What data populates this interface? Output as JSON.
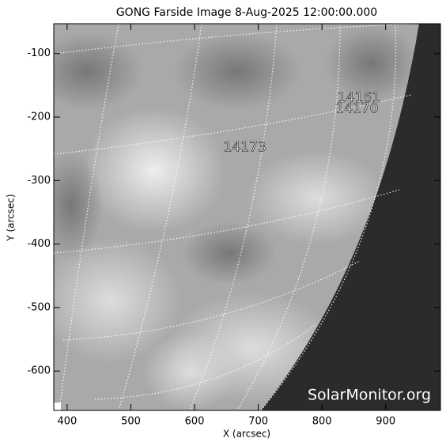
{
  "chart_data": {
    "type": "image",
    "title": "GONG Farside Image  8-Aug-2025 12:00:00.000",
    "x_label": "X (arcsec)",
    "y_label": "Y (arcsec)",
    "watermark": "SolarMonitor.org",
    "xlim": [
      379,
      986
    ],
    "ylim": [
      -662,
      -53
    ],
    "xticks": [
      400,
      500,
      600,
      700,
      800,
      900
    ],
    "yticks": [
      -100,
      -200,
      -300,
      -400,
      -500,
      -600
    ],
    "annotations": [
      {
        "text": "14161",
        "x": 858,
        "y": -170
      },
      {
        "text": "14170",
        "x": 855,
        "y": -187
      },
      {
        "text": "14173",
        "x": 679,
        "y": -248
      }
    ]
  }
}
